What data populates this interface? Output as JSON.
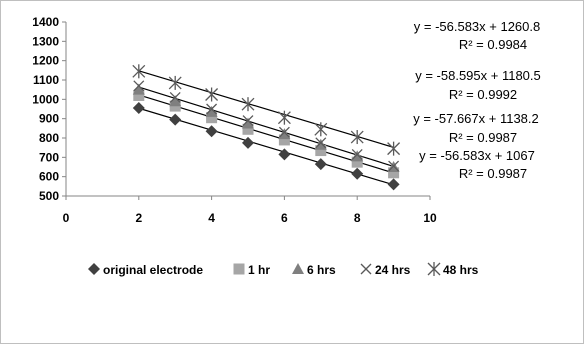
{
  "chart_data": {
    "type": "scatter",
    "x": [
      2,
      3,
      4,
      5,
      6,
      7,
      8,
      9
    ],
    "xlim": [
      0,
      10
    ],
    "ylim": [
      500,
      1400
    ],
    "xticks": [
      0,
      2,
      4,
      6,
      8,
      10
    ],
    "yticks": [
      500,
      600,
      700,
      800,
      900,
      1000,
      1100,
      1200,
      1300,
      1400
    ],
    "grid": false,
    "legend_position": "bottom",
    "series": [
      {
        "name": "original electrode",
        "marker": "diamond",
        "color": "#404040",
        "values": [
          955,
          895,
          835,
          775,
          715,
          665,
          615,
          560
        ],
        "trendline": {
          "slope": -56.583,
          "intercept": 1067
        }
      },
      {
        "name": "1 hr",
        "marker": "square",
        "color": "#a6a6a6",
        "values": [
          1020,
          965,
          905,
          845,
          790,
          735,
          675,
          620
        ],
        "trendline": null
      },
      {
        "name": "6 hrs",
        "marker": "triangle",
        "color": "#7f7f7f",
        "values": [
          1050,
          990,
          935,
          875,
          820,
          765,
          705,
          650
        ],
        "trendline": {
          "slope": -57.667,
          "intercept": 1138.2
        }
      },
      {
        "name": "24 hrs",
        "marker": "x",
        "color": "#595959",
        "values": [
          1070,
          1010,
          950,
          890,
          830,
          775,
          715,
          655
        ],
        "trendline": {
          "slope": -58.595,
          "intercept": 1180.5
        }
      },
      {
        "name": "48 hrs",
        "marker": "star",
        "color": "#595959",
        "values": [
          1145,
          1085,
          1025,
          975,
          905,
          845,
          805,
          745
        ],
        "trendline": {
          "slope": -56.583,
          "intercept": 1260.8
        }
      }
    ],
    "annotations": [
      {
        "equation": "y = -56.583x + 1260.8",
        "r2": "R² = 0.9984"
      },
      {
        "equation": "y = -58.595x + 1180.5",
        "r2": "R² = 0.9992"
      },
      {
        "equation": "y = -57.667x + 1138.2",
        "r2": "R² = 0.9987"
      },
      {
        "equation": "y = -56.583x + 1067",
        "r2": "R² = 0.9987"
      }
    ]
  }
}
